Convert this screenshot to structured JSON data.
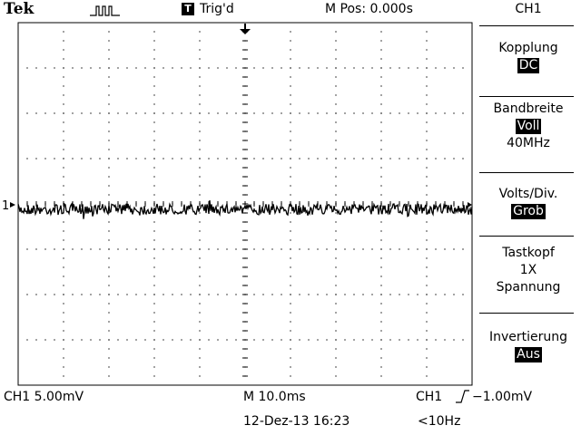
{
  "header": {
    "brand": "Tek",
    "trigger_badge": "T",
    "trigger_state": "Trig'd",
    "horizontal_position": "M Pos: 0.000s"
  },
  "menu": {
    "title": "CH1",
    "items": [
      {
        "label": "Kopplung",
        "value": "DC"
      },
      {
        "label": "Bandbreite",
        "value": "Voll",
        "sub": "40MHz"
      },
      {
        "label": "Volts/Div.",
        "value": "Grob"
      },
      {
        "label": "Tastkopf",
        "line2": "1X",
        "line3": "Spannung"
      },
      {
        "label": "Invertierung",
        "value": "Aus"
      }
    ]
  },
  "graticule": {
    "channel_marker": "1"
  },
  "status": {
    "channel_scale": "CH1  5.00mV",
    "timebase": "M 10.0ms",
    "trigger_source": "CH1",
    "trigger_level": "−1.00mV",
    "date_time": "12-Dez-13 16:23",
    "frequency": "<10Hz"
  },
  "colors": {
    "background": "#ffffff",
    "trace": "#000000"
  },
  "icons": {
    "acquisition": "pulse-waveform-icon",
    "trigger_position": "down-arrow-icon",
    "trigger_slope": "rising-edge-icon"
  }
}
